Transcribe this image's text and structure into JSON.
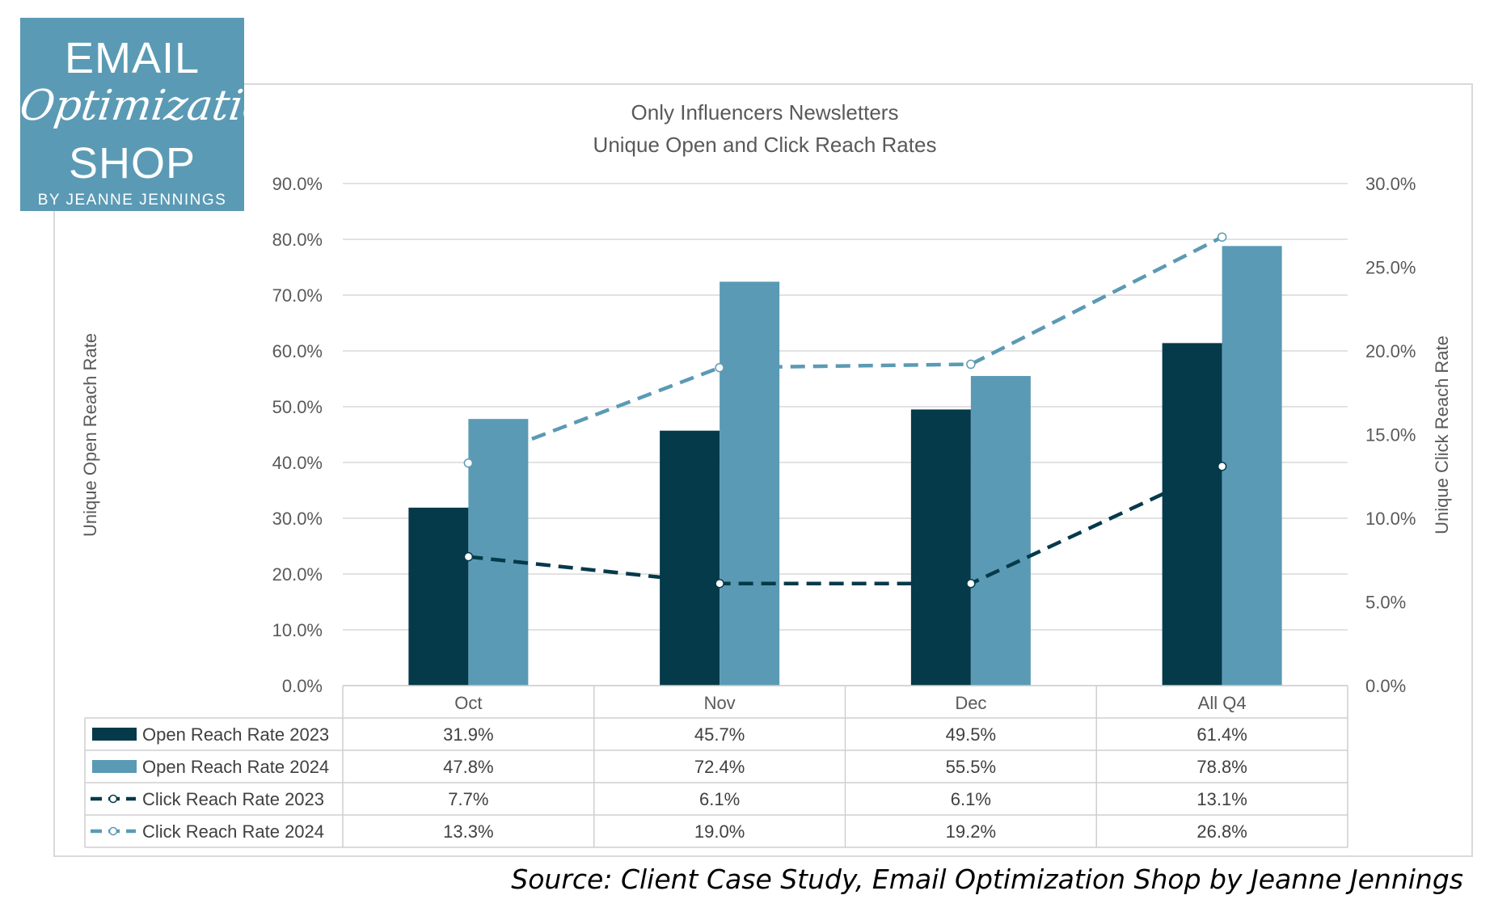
{
  "logo": {
    "line1": "EMAIL",
    "line2": "Optimization",
    "line3": "SHOP",
    "line4": "BY JEANNE JENNINGS"
  },
  "source_note": "Source: Client Case Study, Email Optimization Shop by Jeanne Jennings",
  "colors": {
    "dark": "#043a4a",
    "light": "#5b9ab5",
    "grid": "#d9d9d9",
    "logo_bg": "#5b9ab5"
  },
  "chart_data": {
    "type": "bar",
    "title_lines": [
      "Only Influencers Newsletters",
      "Unique Open and Click Reach Rates"
    ],
    "categories": [
      "Oct",
      "Nov",
      "Dec",
      "All Q4"
    ],
    "ylabel": "Unique Open Reach Rate",
    "y2label": "Unique Click Reach Rate",
    "ylim": [
      0,
      90
    ],
    "y2lim": [
      0,
      30
    ],
    "yticks": [
      "0.0%",
      "10.0%",
      "20.0%",
      "30.0%",
      "40.0%",
      "50.0%",
      "60.0%",
      "70.0%",
      "80.0%",
      "90.0%"
    ],
    "y2ticks": [
      "0.0%",
      "5.0%",
      "10.0%",
      "15.0%",
      "20.0%",
      "25.0%",
      "30.0%"
    ],
    "series": [
      {
        "name": "Open Reach Rate 2023",
        "kind": "bar",
        "axis": "left",
        "color": "#043a4a",
        "values": [
          31.9,
          45.7,
          49.5,
          61.4
        ],
        "labels": [
          "31.9%",
          "45.7%",
          "49.5%",
          "61.4%"
        ]
      },
      {
        "name": "Open Reach Rate 2024",
        "kind": "bar",
        "axis": "left",
        "color": "#5b9ab5",
        "values": [
          47.8,
          72.4,
          55.5,
          78.8
        ],
        "labels": [
          "47.8%",
          "72.4%",
          "55.5%",
          "78.8%"
        ]
      },
      {
        "name": "Click Reach Rate 2023",
        "kind": "line",
        "axis": "right",
        "color": "#043a4a",
        "values": [
          7.7,
          6.1,
          6.1,
          13.1
        ],
        "labels": [
          "7.7%",
          "6.1%",
          "6.1%",
          "13.1%"
        ]
      },
      {
        "name": "Click Reach Rate 2024",
        "kind": "line",
        "axis": "right",
        "color": "#5b9ab5",
        "values": [
          13.3,
          19.0,
          19.2,
          26.8
        ],
        "labels": [
          "13.3%",
          "19.0%",
          "19.2%",
          "26.8%"
        ]
      }
    ],
    "data_table": true
  }
}
